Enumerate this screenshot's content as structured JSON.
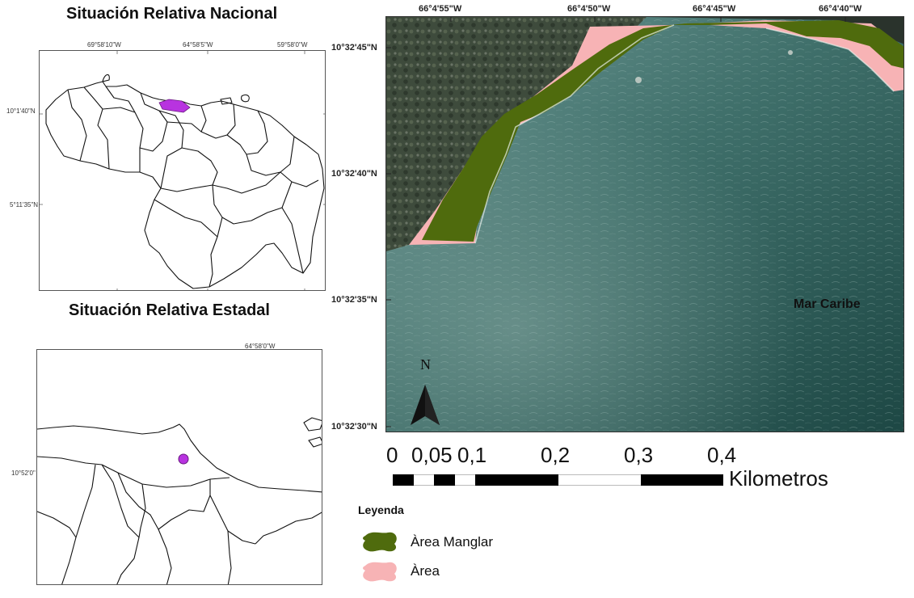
{
  "national_panel": {
    "title": "Situación Relativa Nacional",
    "top_ticks": [
      "69°58'10\"W",
      "64°58'5\"W",
      "59°58'0\"W"
    ],
    "left_ticks": [
      "10°1'40\"N",
      "5°11'35\"N"
    ],
    "highlight_color": "#b833e0"
  },
  "state_panel": {
    "title": "Situación Relativa Estadal",
    "top_ticks": [
      "64°58'0\"W"
    ],
    "left_ticks": [
      "10°52'0\""
    ],
    "marker_color": "#b833e0"
  },
  "main_map": {
    "top_labels": [
      "66°4'55\"W",
      "66°4'50\"W",
      "66°4'45\"W",
      "66°4'40\"W"
    ],
    "left_labels": [
      "10°32'45\"N",
      "10°32'40\"N",
      "10°32'35\"N",
      "10°32'30\"N"
    ],
    "sea_label": "Mar Caribe",
    "north_label": "N",
    "colors": {
      "manglar": "#4f6b0d",
      "area": "#f7b3b5",
      "sea_dark": "#1e4a45",
      "sea_light": "#5f8a86",
      "land": "#3c4a3a"
    }
  },
  "scale_bar": {
    "labels": [
      "0",
      "0,05",
      "0,1",
      "0,2",
      "0,3",
      "0,4"
    ],
    "unit": "Kilometros"
  },
  "legend": {
    "title": "Leyenda",
    "items": [
      {
        "label": "Àrea Manglar",
        "color": "#4f6b0d"
      },
      {
        "label": "Àrea",
        "color": "#f7b3b5"
      }
    ]
  }
}
